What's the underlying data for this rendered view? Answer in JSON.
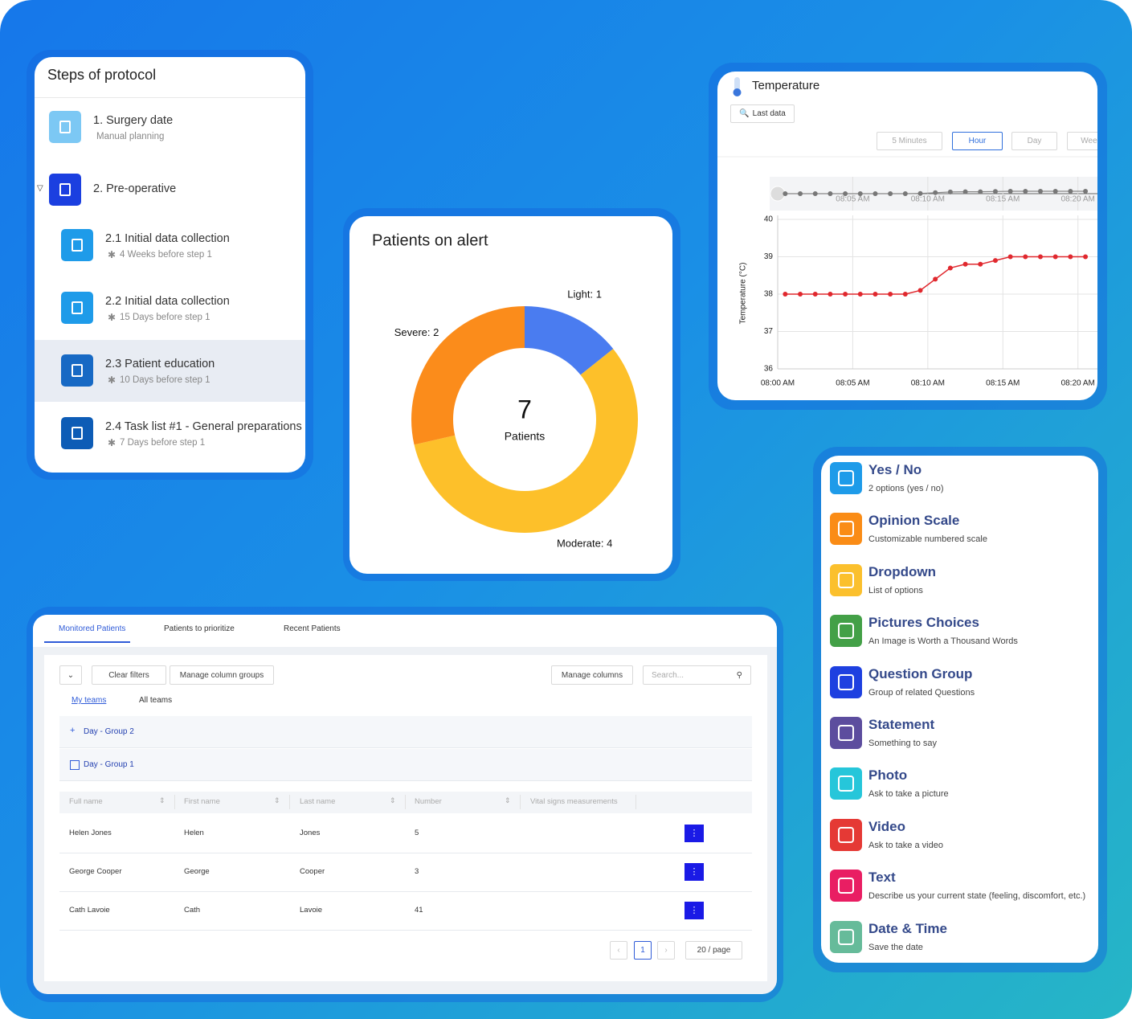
{
  "protocol": {
    "title": "Steps of protocol",
    "steps": [
      {
        "title": "1. Surgery date",
        "subtitle": "Manual planning",
        "level": 1,
        "color": "#7cc8f4"
      },
      {
        "title": "2. Pre-operative",
        "level": 1,
        "color": "#1b3fe0",
        "expanded": true
      },
      {
        "title": "2.1 Initial data collection",
        "subtitle": "4 Weeks before step 1",
        "level": 2,
        "color": "#1e9be9"
      },
      {
        "title": "2.2 Initial data collection",
        "subtitle": "15 Days before step 1",
        "level": 2,
        "color": "#1e9be9"
      },
      {
        "title": "2.3 Patient education",
        "subtitle": "10 Days before step 1",
        "level": 2,
        "color": "#1769c4",
        "selected": true
      },
      {
        "title": "2.4 Task list #1 - General preparations",
        "subtitle": "7 Days before step 1",
        "level": 2,
        "color": "#0d5cb6"
      }
    ]
  },
  "chart_data": [
    {
      "type": "donut",
      "title": "Patients on alert",
      "center_value": 7,
      "center_label": "Patients",
      "values": [
        1,
        4,
        2
      ],
      "value_labels": [
        "Light: 1",
        "Moderate: 4",
        "Severe: 2"
      ],
      "colors": [
        "#4a7cf0",
        "#fdc02a",
        "#fb8c1b"
      ]
    },
    {
      "type": "line",
      "title": "Temperature",
      "y_label": "Temperature (°C)",
      "color": "#e0282e",
      "x": [
        480.5,
        481.5,
        482.5,
        483.5,
        484.5,
        485.5,
        486.5,
        487.5,
        488.5,
        489.5,
        490.5,
        491.5,
        492.5,
        493.5,
        494.5,
        495.5,
        496.5,
        497.5,
        498.5,
        499.5,
        500.5
      ],
      "values": [
        38,
        38,
        38,
        38,
        38,
        38,
        38,
        38,
        38,
        38.1,
        38.4,
        38.7,
        38.8,
        38.8,
        38.9,
        39,
        39,
        39,
        39,
        39,
        39
      ],
      "xlim": [
        480,
        501.3
      ],
      "ylim": [
        36,
        40
      ],
      "yticks": [
        36,
        37,
        38,
        39,
        40
      ],
      "xticks": [
        {
          "value": 480,
          "label": "08:00 AM"
        },
        {
          "value": 485,
          "label": "08:05 AM"
        },
        {
          "value": 490,
          "label": "08:10 AM"
        },
        {
          "value": 495,
          "label": "08:15 AM"
        },
        {
          "value": 500,
          "label": "08:20 AM"
        }
      ],
      "grid": true
    }
  ],
  "temperature_controls": {
    "last_data": "Last data",
    "ranges": [
      "5 Minutes",
      "Hour",
      "Day",
      "Week"
    ],
    "active_range": 1
  },
  "patients": {
    "tabs": [
      "Monitored Patients",
      "Patients to prioritize",
      "Recent Patients"
    ],
    "clear_filters": "Clear filters",
    "manage_column_groups": "Manage column groups",
    "manage_columns": "Manage columns",
    "search": "Search...",
    "teams": [
      "My teams",
      "All teams"
    ],
    "groups": [
      "Day - Group 2",
      "Day - Group 1"
    ],
    "columns": [
      "Full name",
      "First name",
      "Last name",
      "Number",
      "Vital signs measurements"
    ],
    "rows": [
      [
        "Helen Jones",
        "Helen",
        "Jones",
        5
      ],
      [
        "George Cooper",
        "George",
        "Cooper",
        3
      ],
      [
        "Cath Lavoie",
        "Cath",
        "Lavoie",
        41
      ]
    ],
    "page": 1,
    "page_size": "20 / page"
  },
  "question_types": [
    {
      "title": "Yes / No",
      "subtitle": "2 options (yes / no)",
      "color": "#1e9be9"
    },
    {
      "title": "Opinion Scale",
      "subtitle": "Customizable numbered scale",
      "color": "#fa8c16"
    },
    {
      "title": "Dropdown",
      "subtitle": "List of options",
      "color": "#fbc02d"
    },
    {
      "title": "Pictures Choices",
      "subtitle": "An Image is Worth a Thousand Words",
      "color": "#43a047"
    },
    {
      "title": "Question Group",
      "subtitle": "Group of related Questions",
      "color": "#1e40e0"
    },
    {
      "title": "Statement",
      "subtitle": "Something to say",
      "color": "#5c4d9e"
    },
    {
      "title": "Photo",
      "subtitle": "Ask to take a picture",
      "color": "#26c6da"
    },
    {
      "title": "Video",
      "subtitle": "Ask to take a video",
      "color": "#e53935"
    },
    {
      "title": "Text",
      "subtitle": "Describe us your current state (feeling, discomfort, etc.)",
      "color": "#e91e63"
    },
    {
      "title": "Date & Time",
      "subtitle": "Save the date",
      "color": "#66bb9a"
    }
  ]
}
